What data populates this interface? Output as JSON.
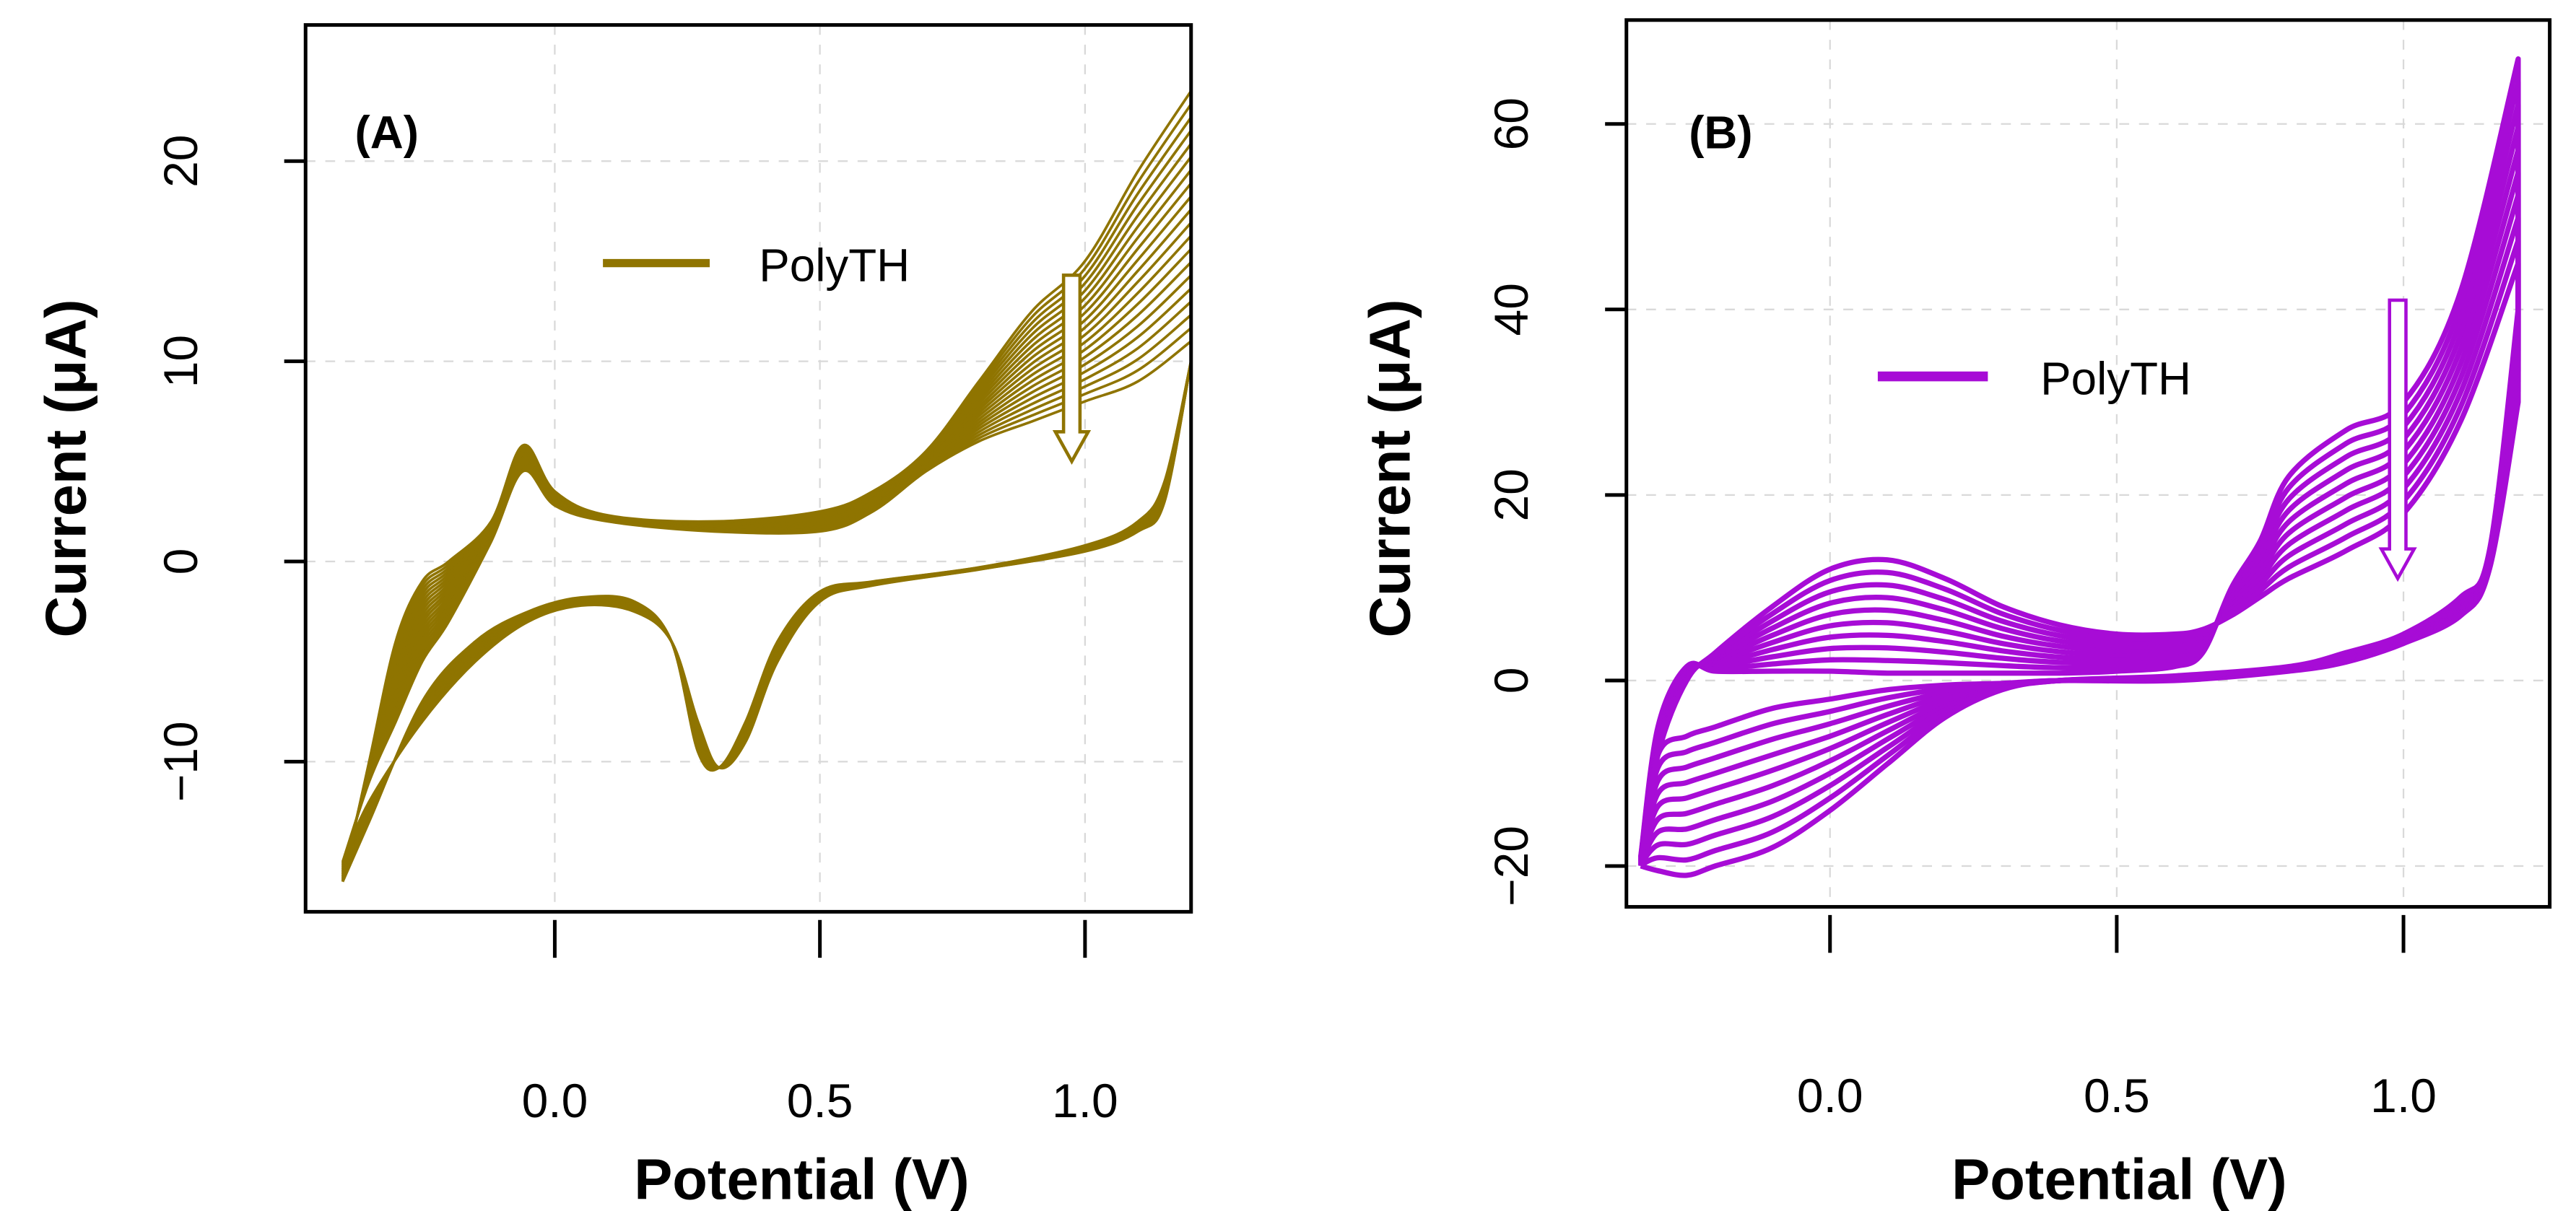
{
  "chart_data": [
    {
      "type": "line",
      "panel_label": "(A)",
      "xlabel": "Potential (V)",
      "ylabel": "Current (μA)",
      "xlim": [
        -0.47,
        1.2
      ],
      "ylim": [
        -17.5,
        26.8
      ],
      "xticks": [
        0.0,
        0.5,
        1.0
      ],
      "xtick_labels": [
        "0.0",
        "0.5",
        "1.0"
      ],
      "yticks": [
        -10,
        0,
        10,
        20
      ],
      "ytick_labels": [
        "−10",
        "0",
        "10",
        "20"
      ],
      "grid": true,
      "legend": {
        "label": "PolyTH",
        "placement": "top-center"
      },
      "color": "#8f7400",
      "cycles": 20,
      "forward_x": [
        -0.4,
        -0.35,
        -0.3,
        -0.25,
        -0.2,
        -0.12,
        -0.06,
        0,
        0.1,
        0.3,
        0.5,
        0.6,
        0.7,
        0.8,
        0.9,
        1.0,
        1.1,
        1.2
      ],
      "reverse_x": [
        1.2,
        1.15,
        1.1,
        1.0,
        0.8,
        0.6,
        0.5,
        0.42,
        0.36,
        0.31,
        0.27,
        0.22,
        0.15,
        0.05,
        -0.05,
        -0.15,
        -0.25,
        -0.35,
        -0.4
      ],
      "first_cycle": {
        "forward_y": [
          -16,
          -10,
          -4,
          -1,
          0,
          2,
          5.8,
          3.5,
          2.3,
          2,
          2.5,
          3.5,
          5.5,
          9,
          12.5,
          15,
          19.5,
          23.5
        ],
        "reverse_y": [
          10,
          4,
          2,
          0.8,
          -0.3,
          -1,
          -1.5,
          -4,
          -8,
          -10.3,
          -9.5,
          -4,
          -2,
          -1.8,
          -2.5,
          -4,
          -7,
          -13,
          -16
        ]
      },
      "last_cycle": {
        "forward_y": [
          -15,
          -11,
          -8,
          -5,
          -3,
          1,
          4.5,
          2.8,
          2,
          1.5,
          1.5,
          2.5,
          4.5,
          6,
          7,
          8,
          9,
          11
        ],
        "reverse_y": [
          10,
          3,
          1.5,
          0.5,
          -0.4,
          -1.2,
          -2,
          -5,
          -9,
          -10.3,
          -8,
          -4,
          -2.5,
          -2.2,
          -3,
          -5,
          -8,
          -12,
          -15
        ]
      },
      "annotations": [
        {
          "type": "arrow",
          "from": [
            0.975,
            14.3
          ],
          "to": [
            0.975,
            5
          ]
        }
      ]
    },
    {
      "type": "line",
      "panel_label": "(B)",
      "xlabel": "Potential (V)",
      "ylabel": "Current (μA)",
      "xlim": [
        -0.355,
        1.255
      ],
      "ylim": [
        -24.4,
        71.2
      ],
      "xticks": [
        0.0,
        0.5,
        1.0
      ],
      "xtick_labels": [
        "0.0",
        "0.5",
        "1.0"
      ],
      "yticks": [
        -20,
        0,
        20,
        40,
        60
      ],
      "ytick_labels": [
        "−20",
        "0",
        "20",
        "40",
        "60"
      ],
      "grid": true,
      "legend": {
        "label": "PolyTH",
        "placement": "center"
      },
      "color": "#a70cd6",
      "cycles": 10,
      "forward_x": [
        -0.33,
        -0.3,
        -0.25,
        -0.2,
        -0.1,
        0,
        0.1,
        0.2,
        0.3,
        0.4,
        0.5,
        0.6,
        0.65,
        0.7,
        0.75,
        0.8,
        0.9,
        1.0,
        1.1,
        1.2
      ],
      "reverse_x": [
        1.2,
        1.15,
        1.1,
        1.0,
        0.9,
        0.8,
        0.6,
        0.4,
        0.3,
        0.2,
        0.1,
        0,
        -0.1,
        -0.2,
        -0.25,
        -0.3,
        -0.33
      ],
      "first_cycle": {
        "forward_y": [
          -19,
          -5,
          1.5,
          1,
          1,
          1,
          0.8,
          0.8,
          0.8,
          0.8,
          1,
          1.5,
          3,
          10,
          15,
          22,
          27,
          30,
          42,
          67
        ],
        "reverse_y": [
          30,
          12,
          7,
          4,
          2,
          1,
          0,
          0,
          -0.3,
          -0.5,
          -1,
          -2,
          -3,
          -5,
          -6,
          -8,
          -19
        ]
      },
      "last_cycle": {
        "forward_y": [
          -20,
          -8,
          0,
          3,
          8,
          12,
          13,
          11,
          8,
          6,
          5,
          5,
          5.5,
          7,
          9,
          11,
          14,
          18,
          28,
          45
        ],
        "reverse_y": [
          40,
          14,
          9,
          5,
          3,
          1.5,
          0.5,
          0,
          -1,
          -4,
          -9,
          -14,
          -18,
          -20,
          -21,
          -20.5,
          -20
        ]
      },
      "annotations": [
        {
          "type": "arrow",
          "from": [
            0.99,
            41
          ],
          "to": [
            0.99,
            11
          ]
        }
      ]
    }
  ]
}
